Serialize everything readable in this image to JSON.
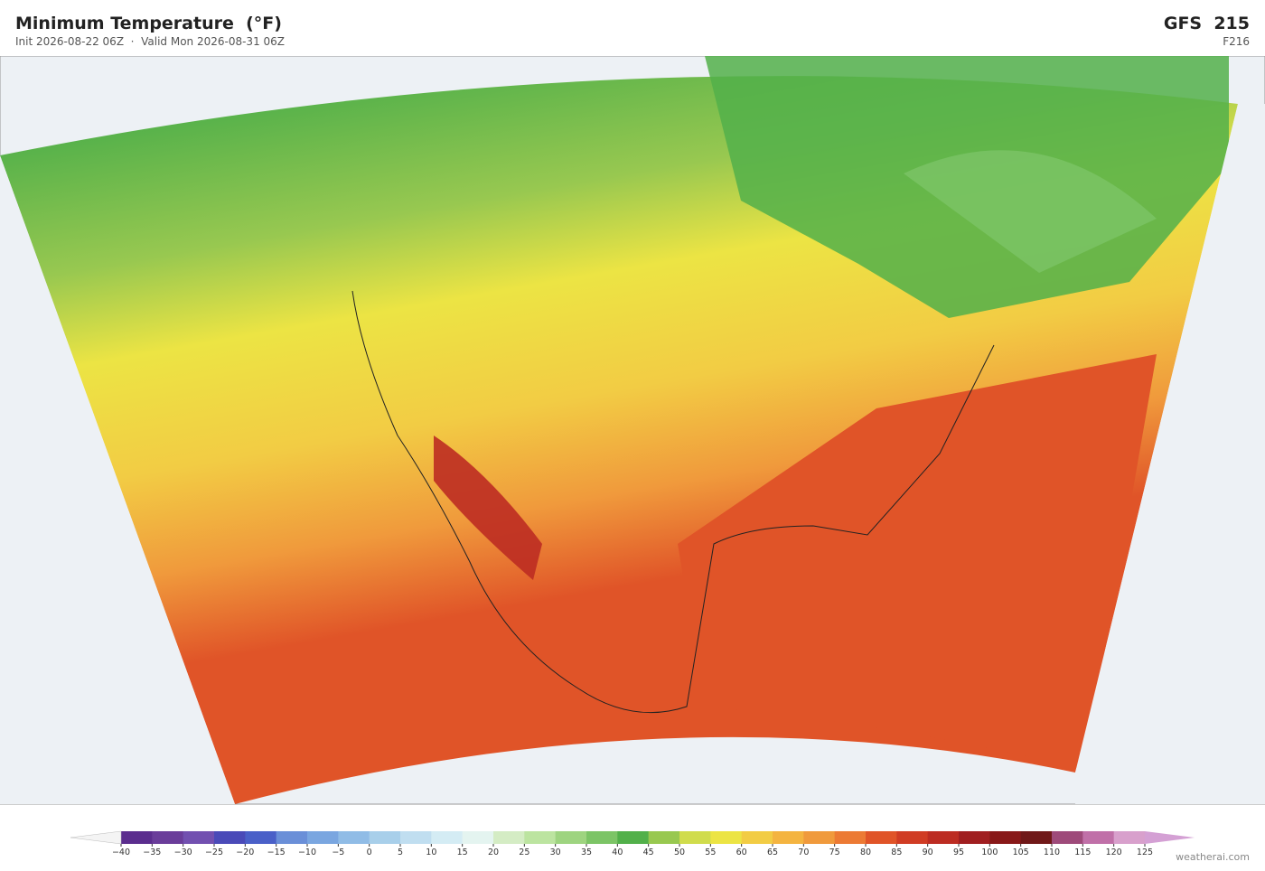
{
  "header": {
    "title": "Minimum Temperature  (°F)",
    "subtitle": "Init 2026-08-22 06Z  ·  Valid Mon 2026-08-31 06Z",
    "model": "GFS  215",
    "forecast_hour": "F216"
  },
  "colorbar": {
    "ticks": [
      {
        "value": -40,
        "label": "−40"
      },
      {
        "value": -35,
        "label": "−35"
      },
      {
        "value": -30,
        "label": "−30"
      },
      {
        "value": -25,
        "label": "−25"
      },
      {
        "value": -20,
        "label": "−20"
      },
      {
        "value": -15,
        "label": "−15"
      },
      {
        "value": -10,
        "label": "−10"
      },
      {
        "value": -5,
        "label": "−5"
      },
      0,
      5,
      10,
      15,
      20,
      25,
      30,
      35,
      40,
      45,
      50,
      55,
      60,
      65,
      70,
      75,
      80,
      85,
      90,
      95,
      100,
      105,
      110,
      115,
      120,
      125
    ],
    "colors": [
      "#5b2d8e",
      "#6a3d9a",
      "#7250b0",
      "#4a4ab8",
      "#4a60c8",
      "#6a8fd8",
      "#7aa6e0",
      "#90bce6",
      "#a8cfea",
      "#c0def0",
      "#d4ecf4",
      "#e4f4f0",
      "#d4ecc4",
      "#bce4a0",
      "#9ed480",
      "#7cc466",
      "#52b04a",
      "#98c850",
      "#d0dc4c",
      "#ece444",
      "#f2cc44",
      "#f4b440",
      "#f09a3c",
      "#ec7a34",
      "#e05428",
      "#d03c24",
      "#bc2c22",
      "#a01e20",
      "#881818",
      "#701818",
      "#9e4a7a",
      "#c070a8",
      "#d8a0cc"
    ],
    "extend_colors": [
      "#f4f4f4",
      "#d4a0d4"
    ]
  },
  "footer": {
    "credit": "weatherai.com"
  }
}
